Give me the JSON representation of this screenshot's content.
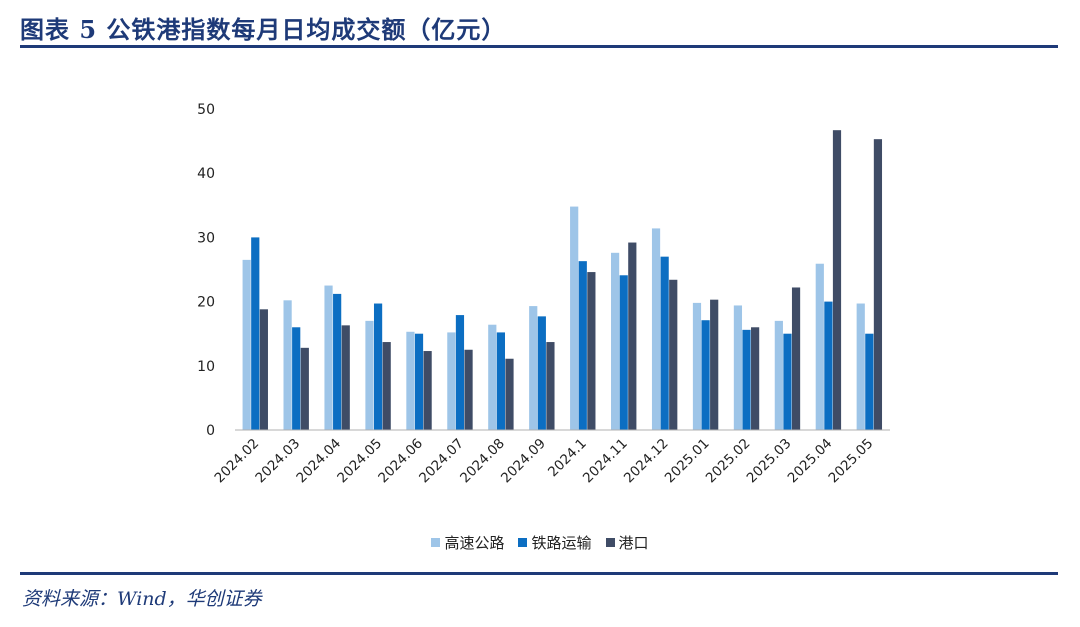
{
  "header": {
    "title": "图表 5 公铁港指数每月日均成交额（亿元）"
  },
  "footer": {
    "source": "资料来源：Wind，华创证券"
  },
  "chart_data": {
    "type": "bar",
    "title": "",
    "xlabel": "",
    "ylabel": "",
    "ylim": [
      0,
      50
    ],
    "yticks": [
      "0",
      "10",
      "20",
      "30",
      "40",
      "50"
    ],
    "grid": false,
    "legend_position": "bottom",
    "categories": [
      "2024.02",
      "2024.03",
      "2024.04",
      "2024.05",
      "2024.06",
      "2024.07",
      "2024.08",
      "2024.09",
      "2024.1",
      "2024.11",
      "2024.12",
      "2025.01",
      "2025.02",
      "2025.03",
      "2025.04",
      "2025.05"
    ],
    "series": [
      {
        "name": "高速公路",
        "color": "#9ec5e8",
        "values": [
          26.5,
          20.2,
          22.5,
          17.0,
          15.3,
          15.2,
          16.4,
          19.3,
          34.8,
          27.6,
          31.4,
          19.8,
          19.4,
          17.0,
          25.9,
          19.7
        ]
      },
      {
        "name": "铁路运输",
        "color": "#0c6ec2",
        "values": [
          30.0,
          16.0,
          21.2,
          19.7,
          15.0,
          17.9,
          15.2,
          17.7,
          26.3,
          24.1,
          27.0,
          17.1,
          15.6,
          15.0,
          20.0,
          15.0
        ]
      },
      {
        "name": "港口",
        "color": "#3f4c66",
        "values": [
          18.8,
          12.8,
          16.3,
          13.7,
          12.3,
          12.5,
          11.1,
          13.7,
          24.6,
          29.2,
          23.4,
          20.3,
          16.0,
          22.2,
          46.7,
          45.3
        ]
      }
    ]
  }
}
